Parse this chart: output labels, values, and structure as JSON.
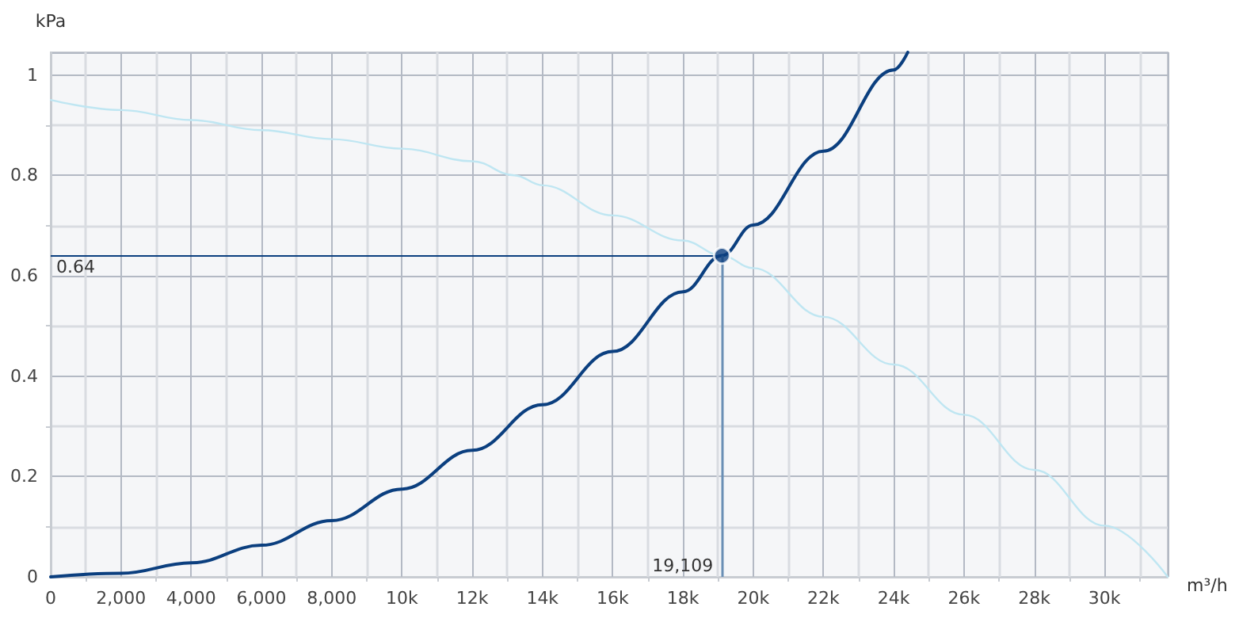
{
  "chart_data": {
    "type": "line",
    "xlabel": "m³/h",
    "ylabel": "kPa",
    "xlim": [
      0,
      31800
    ],
    "ylim": [
      0,
      1.045
    ],
    "xticks": [
      0,
      {
        "value": 2000,
        "label": "2,000"
      },
      {
        "value": 4000,
        "label": "4,000"
      },
      {
        "value": 6000,
        "label": "6,000"
      },
      {
        "value": 8000,
        "label": "8,000"
      },
      {
        "value": 10000,
        "label": "10k"
      },
      {
        "value": 12000,
        "label": "12k"
      },
      {
        "value": 14000,
        "label": "14k"
      },
      {
        "value": 16000,
        "label": "16k"
      },
      {
        "value": 18000,
        "label": "18k"
      },
      {
        "value": 20000,
        "label": "20k"
      },
      {
        "value": 22000,
        "label": "22k"
      },
      {
        "value": 24000,
        "label": "24k"
      },
      {
        "value": 26000,
        "label": "26k"
      },
      {
        "value": 28000,
        "label": "28k"
      },
      {
        "value": 30000,
        "label": "30k"
      }
    ],
    "yticks": [
      0,
      0.2,
      0.4,
      0.6,
      0.8,
      1
    ],
    "grid": true,
    "marker": "none",
    "line_style": "solid",
    "series": [
      {
        "color": "#bfe6f2",
        "x": [
          0,
          2000,
          4000,
          6000,
          8000,
          10000,
          12000,
          13200,
          14000,
          16000,
          18000,
          19109,
          20000,
          22000,
          24000,
          26000,
          28000,
          30000,
          31800
        ],
        "values": [
          0.95,
          0.93,
          0.91,
          0.89,
          0.872,
          0.853,
          0.828,
          0.8,
          0.78,
          0.72,
          0.67,
          0.64,
          0.615,
          0.518,
          0.423,
          0.323,
          0.213,
          0.102,
          0
        ]
      },
      {
        "color": "#0b3f7f",
        "x": [
          0,
          2000,
          4000,
          6000,
          8000,
          10000,
          12000,
          14000,
          16000,
          18000,
          19109,
          20000,
          22000,
          24000,
          24400
        ],
        "values": [
          0,
          0.007,
          0.028,
          0.063,
          0.112,
          0.175,
          0.252,
          0.343,
          0.449,
          0.568,
          0.64,
          0.701,
          0.848,
          1.01,
          1.045
        ]
      },
      {
        "type": "scatter",
        "marker": "circle",
        "color": "#0b3f7f",
        "x": [
          19109
        ],
        "values": [
          0.64
        ]
      }
    ],
    "ref_lines": [
      {
        "axis": "y",
        "value": 0.64,
        "label": "0.64",
        "color": "#0b3f7f"
      },
      {
        "axis": "x",
        "value": 19109,
        "label": "19,109",
        "color": "#6a8fb5"
      }
    ]
  }
}
